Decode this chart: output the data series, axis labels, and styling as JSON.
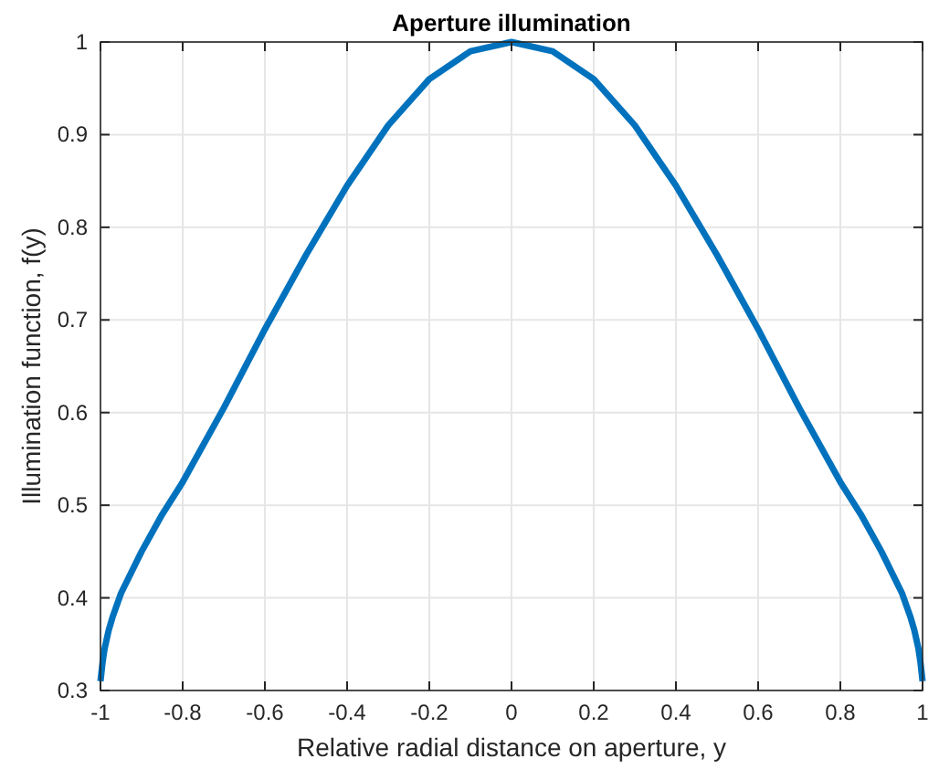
{
  "chart_data": {
    "type": "line",
    "title": "Aperture illumination",
    "xlabel": "Relative radial distance on aperture, y",
    "ylabel": "Illumination function, f(y)",
    "x": [
      -1,
      -0.995,
      -0.99,
      -0.98,
      -0.97,
      -0.95,
      -0.9,
      -0.85,
      -0.8,
      -0.7,
      -0.6,
      -0.5,
      -0.4,
      -0.3,
      -0.2,
      -0.1,
      0,
      0.1,
      0.2,
      0.3,
      0.4,
      0.5,
      0.6,
      0.7,
      0.8,
      0.85,
      0.9,
      0.95,
      0.97,
      0.98,
      0.99,
      0.995,
      1
    ],
    "series": [
      {
        "color": "#0072bd",
        "values": [
          0.31,
          0.33,
          0.345,
          0.365,
          0.38,
          0.405,
          0.45,
          0.49,
          0.525,
          0.605,
          0.69,
          0.77,
          0.845,
          0.91,
          0.96,
          0.99,
          1,
          0.99,
          0.96,
          0.91,
          0.845,
          0.77,
          0.69,
          0.605,
          0.525,
          0.49,
          0.45,
          0.405,
          0.38,
          0.365,
          0.345,
          0.33,
          0.31
        ]
      }
    ],
    "xlim": [
      -1,
      1
    ],
    "ylim": [
      0.3,
      1
    ],
    "xticks": [
      -1,
      -0.8,
      -0.6,
      -0.4,
      -0.2,
      0,
      0.2,
      0.4,
      0.6,
      0.8,
      1
    ],
    "yticks": [
      0.3,
      0.4,
      0.5,
      0.6,
      0.7,
      0.8,
      0.9,
      1
    ],
    "grid": true,
    "marker": "none",
    "line_style": "solid"
  }
}
